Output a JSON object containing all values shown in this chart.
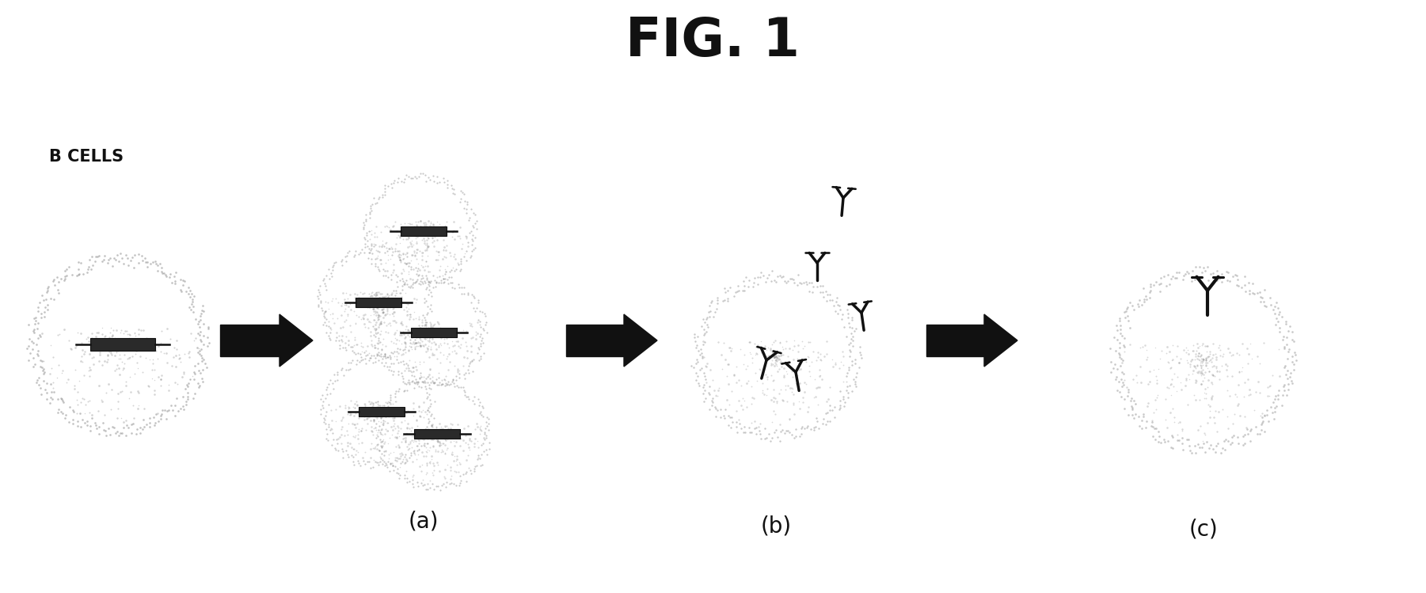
{
  "title": "FIG. 1",
  "title_fontsize": 48,
  "title_fontweight": "bold",
  "bg_color": "#ffffff",
  "label_bcells": "B CELLS",
  "label_a": "(a)",
  "label_b": "(b)",
  "label_c": "(c)",
  "label_fontsize": 20,
  "dark_color": "#111111",
  "fig_width": 18.01,
  "fig_height": 7.49,
  "cell_dot_color": "#666666",
  "cell_dot_alpha": 0.55
}
